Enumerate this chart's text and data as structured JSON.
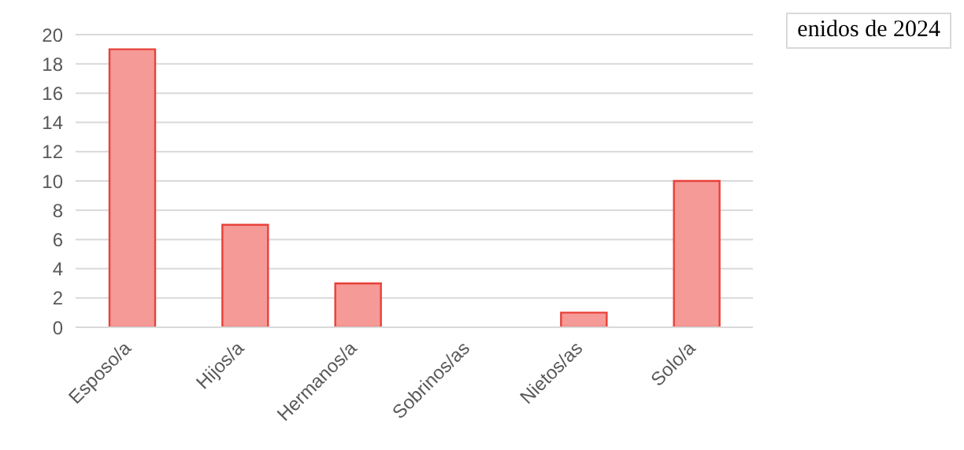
{
  "chart_data": {
    "type": "bar",
    "categories": [
      "Esposo/a",
      "Hijos/a",
      "Hermanos/a",
      "Sobrinos/as",
      "Nietos/as",
      "Solo/a"
    ],
    "values": [
      19,
      7,
      3,
      0,
      1,
      10
    ],
    "color": "#f59a96",
    "ylim": [
      0,
      20
    ],
    "yticks": [
      0,
      2,
      4,
      6,
      8,
      10,
      12,
      14,
      16,
      18,
      20
    ],
    "grid": "y",
    "annotations": [
      "enidos de 2024"
    ]
  }
}
